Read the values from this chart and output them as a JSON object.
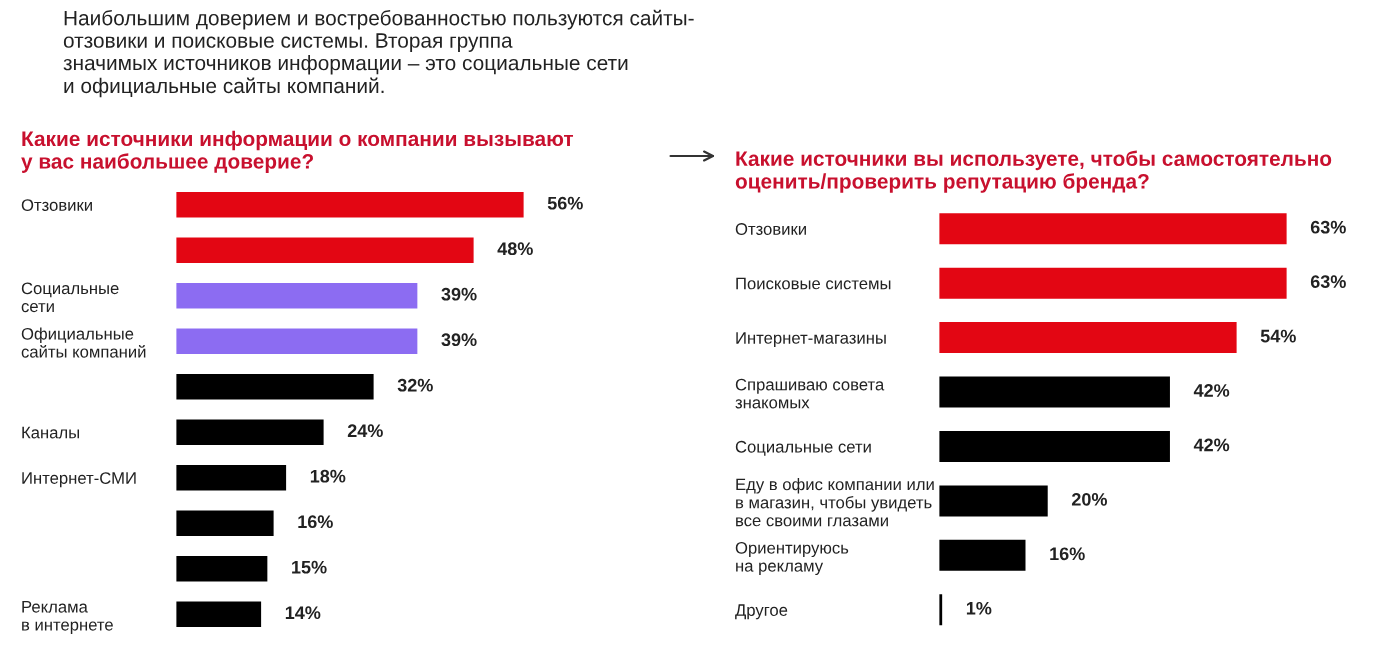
{
  "chart_data": [
    {
      "type": "bar",
      "orientation": "horizontal",
      "title": "Какие источники информации о компании вызывают\nу вас наибольшее доверие?",
      "annotations": [
        "Наибольшим доверием и востребованностью пользуются сайты-\nотзовики и поисковые системы. Вторая группа\nзначимых источников информации – это социальные сети\nи официальные сайты компаний."
      ],
      "categories": [
        "Отзовики",
        null,
        "Социальные\nсети",
        "Официальные\nсайты компаний",
        null,
        "Каналы",
        "Интернет-СМИ",
        null,
        null,
        "Реклама\nв интернете"
      ],
      "values": [
        56,
        48,
        39,
        39,
        32,
        24,
        18,
        16,
        15,
        14
      ],
      "colors": [
        "#e30613",
        "#e30613",
        "#8c6cf2",
        "#8c6cf2",
        "#000000",
        "#000000",
        "#000000",
        "#000000",
        "#000000",
        "#000000"
      ],
      "value_labels": [
        "56%",
        "48%",
        "39%",
        "39%",
        "32%",
        "24%",
        "18%",
        "16%",
        "15%",
        "14%"
      ],
      "grid": false,
      "legend": false
    },
    {
      "type": "bar",
      "orientation": "horizontal",
      "title": "Какие источники вы используете, чтобы самостоятельно\nоценить/проверить репутацию бренда?",
      "categories": [
        "Отзовики",
        "Поисковые системы",
        "Интернет-магазины",
        "Спрашиваю совета\nзнакомых",
        "Социальные сети",
        "Еду в офис компании или\nв магазин, чтобы увидеть\nвсе своими глазами",
        "Ориентируюсь\nна рекламу",
        "Другое"
      ],
      "values": [
        63,
        63,
        54,
        42,
        42,
        20,
        16,
        1
      ],
      "colors": [
        "#e30613",
        "#e30613",
        "#e30613",
        "#000000",
        "#000000",
        "#000000",
        "#000000",
        "#000000"
      ],
      "value_labels": [
        "63%",
        "63%",
        "54%",
        "42%",
        "42%",
        "20%",
        "16%",
        "1%"
      ],
      "grid": false,
      "legend": false
    }
  ]
}
